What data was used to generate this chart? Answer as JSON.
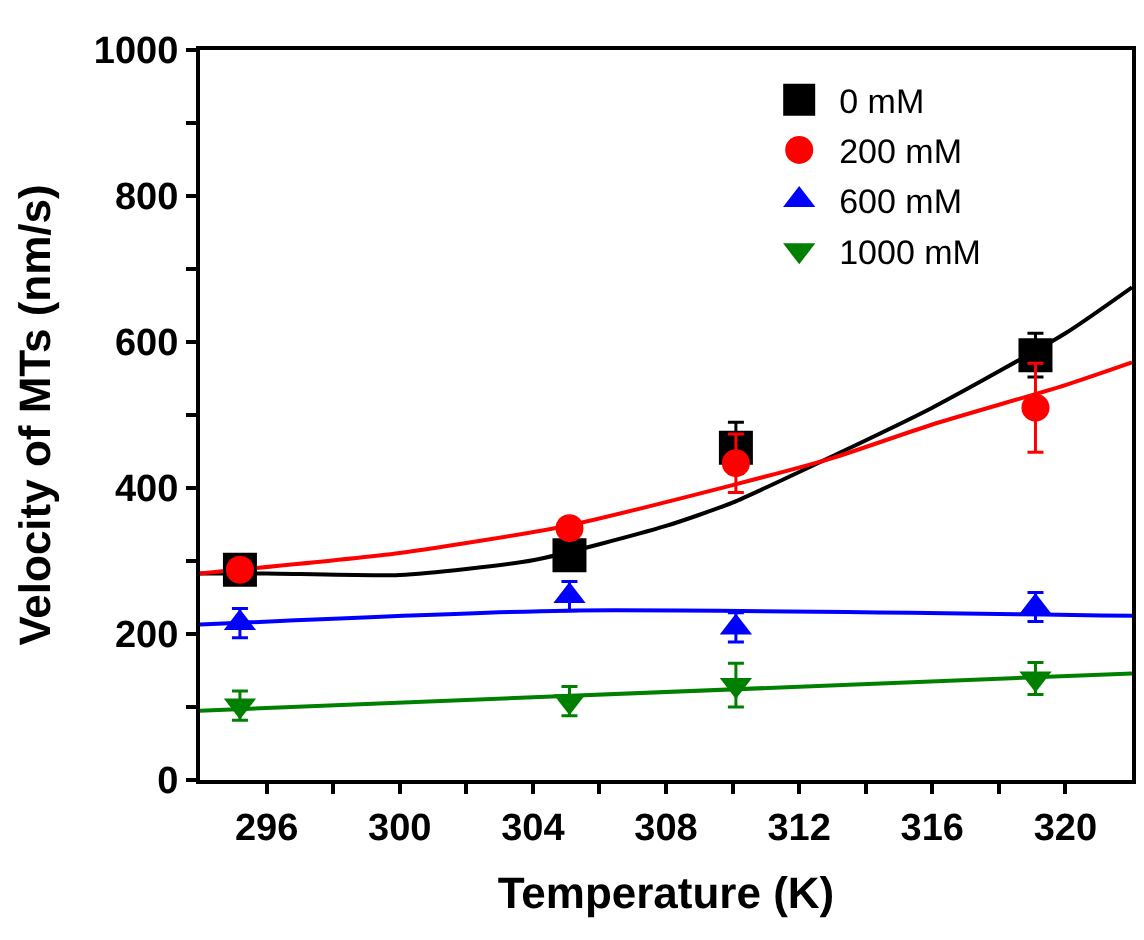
{
  "chart_data": {
    "type": "scatter",
    "xlabel": "Temperature (K)",
    "ylabel": "Velocity of MTs (nm/s)",
    "xlim": [
      294,
      322
    ],
    "ylim": [
      0,
      1000
    ],
    "xticks": [
      296,
      {
        "value": 298,
        "label": null
      },
      300,
      {
        "value": 302,
        "label": null
      },
      304,
      {
        "value": 306,
        "label": null
      },
      308,
      {
        "value": 310,
        "label": null
      },
      312,
      {
        "value": 314,
        "label": null
      },
      316,
      {
        "value": 318,
        "label": null
      },
      320
    ],
    "yticks": [
      0,
      {
        "value": 100,
        "label": null
      },
      200,
      {
        "value": 300,
        "label": null
      },
      400,
      {
        "value": 500,
        "label": null
      },
      600,
      {
        "value": 700,
        "label": null
      },
      800,
      {
        "value": 900,
        "label": null
      },
      1000
    ],
    "legend": "top right",
    "series": [
      {
        "type": "line",
        "color": "#000000",
        "marker": "none",
        "x": [
          294,
          296,
          300,
          304,
          308,
          310,
          312,
          316,
          320,
          322
        ],
        "values": [
          283,
          283,
          281,
          301,
          348,
          380,
          422,
          510,
          612,
          675
        ]
      },
      {
        "type": "line",
        "color": "#ff0000",
        "marker": "none",
        "x": [
          294,
          300,
          305,
          310,
          313,
          316,
          320,
          322
        ],
        "values": [
          283,
          311,
          348,
          404,
          441,
          487,
          541,
          572
        ]
      },
      {
        "type": "line",
        "color": "#0000ff",
        "marker": "none",
        "x": [
          294,
          305,
          322
        ],
        "values": [
          213,
          232,
          225
        ]
      },
      {
        "type": "line",
        "color": "#008000",
        "marker": "none",
        "x": [
          294,
          322
        ],
        "values": [
          95,
          146
        ]
      },
      {
        "name": "0 mM",
        "color": "#000000",
        "marker": "square",
        "x": [
          295.2,
          305.1,
          310.1,
          319.1
        ],
        "values": [
          288,
          308,
          455,
          582
        ],
        "errors": [
          null,
          null,
          35,
          30
        ]
      },
      {
        "name": "200 mM",
        "color": "#ff0000",
        "marker": "circle",
        "x": [
          295.2,
          305.1,
          310.1,
          319.1
        ],
        "values": [
          288,
          345,
          434,
          510
        ],
        "errors": [
          null,
          null,
          40,
          61
        ]
      },
      {
        "name": "600 mM",
        "color": "#0000ff",
        "marker": "triangle",
        "x": [
          295.2,
          305.1,
          310.1,
          319.1
        ],
        "values": [
          215,
          252,
          209,
          237
        ],
        "errors": [
          20,
          20,
          20,
          20
        ]
      },
      {
        "name": "1000 mM",
        "color": "#008000",
        "marker": "triangle-down",
        "x": [
          295.2,
          305.1,
          310.1,
          319.1
        ],
        "values": [
          102,
          108,
          130,
          139
        ],
        "errors": [
          20,
          20,
          30,
          22
        ]
      }
    ]
  }
}
